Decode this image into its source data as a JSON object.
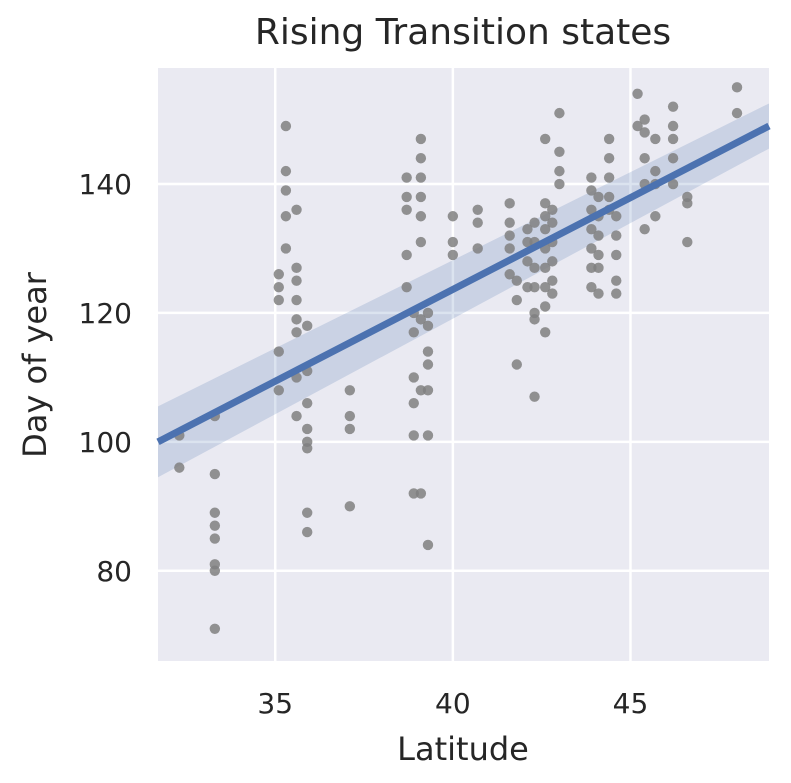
{
  "chart_data": {
    "type": "scatter",
    "title": "Rising Transition states",
    "xlabel": "Latitude",
    "ylabel": "Day of year",
    "xlim": [
      31.7,
      48.9
    ],
    "ylim": [
      66,
      158
    ],
    "xticks": [
      35,
      40,
      45
    ],
    "yticks": [
      80,
      100,
      120,
      140
    ],
    "grid": true,
    "background_color": "#eaeaf2",
    "grid_color": "#ffffff",
    "point_color": "#808080",
    "line_color": "#4c72b0",
    "band_color": "#4c72b0",
    "regression": {
      "x": [
        31.7,
        48.9
      ],
      "y": [
        100.0,
        149.0
      ],
      "ci_lower": [
        94.5,
        145.5
      ],
      "ci_upper": [
        105.5,
        152.5
      ]
    },
    "points": [
      [
        32.3,
        101
      ],
      [
        32.3,
        96
      ],
      [
        33.3,
        104
      ],
      [
        33.3,
        95
      ],
      [
        33.3,
        89
      ],
      [
        33.3,
        87
      ],
      [
        33.3,
        85
      ],
      [
        33.3,
        81
      ],
      [
        33.3,
        80
      ],
      [
        33.3,
        71
      ],
      [
        35.1,
        126
      ],
      [
        35.1,
        124
      ],
      [
        35.1,
        122
      ],
      [
        35.1,
        114
      ],
      [
        35.1,
        108
      ],
      [
        35.3,
        149
      ],
      [
        35.3,
        142
      ],
      [
        35.3,
        139
      ],
      [
        35.3,
        135
      ],
      [
        35.3,
        130
      ],
      [
        35.6,
        136
      ],
      [
        35.6,
        127
      ],
      [
        35.6,
        125
      ],
      [
        35.6,
        122
      ],
      [
        35.6,
        119
      ],
      [
        35.6,
        117
      ],
      [
        35.6,
        110
      ],
      [
        35.6,
        104
      ],
      [
        35.9,
        118
      ],
      [
        35.9,
        111
      ],
      [
        35.9,
        106
      ],
      [
        35.9,
        102
      ],
      [
        35.9,
        100
      ],
      [
        35.9,
        99
      ],
      [
        35.9,
        89
      ],
      [
        35.9,
        86
      ],
      [
        37.1,
        108
      ],
      [
        37.1,
        104
      ],
      [
        37.1,
        102
      ],
      [
        37.1,
        90
      ],
      [
        38.7,
        141
      ],
      [
        38.7,
        138
      ],
      [
        38.7,
        136
      ],
      [
        38.7,
        129
      ],
      [
        38.7,
        124
      ],
      [
        38.9,
        120
      ],
      [
        38.9,
        117
      ],
      [
        38.9,
        110
      ],
      [
        38.9,
        106
      ],
      [
        38.9,
        101
      ],
      [
        38.9,
        92
      ],
      [
        39.1,
        147
      ],
      [
        39.1,
        144
      ],
      [
        39.1,
        141
      ],
      [
        39.1,
        138
      ],
      [
        39.1,
        135
      ],
      [
        39.1,
        131
      ],
      [
        39.1,
        119
      ],
      [
        39.1,
        108
      ],
      [
        39.1,
        92
      ],
      [
        39.3,
        120
      ],
      [
        39.3,
        118
      ],
      [
        39.3,
        114
      ],
      [
        39.3,
        112
      ],
      [
        39.3,
        108
      ],
      [
        39.3,
        101
      ],
      [
        39.3,
        84
      ],
      [
        40.0,
        135
      ],
      [
        40.0,
        131
      ],
      [
        40.0,
        129
      ],
      [
        40.7,
        136
      ],
      [
        40.7,
        134
      ],
      [
        40.7,
        130
      ],
      [
        41.6,
        137
      ],
      [
        41.6,
        134
      ],
      [
        41.6,
        132
      ],
      [
        41.6,
        130
      ],
      [
        41.6,
        126
      ],
      [
        41.8,
        125
      ],
      [
        41.8,
        122
      ],
      [
        41.8,
        112
      ],
      [
        42.1,
        133
      ],
      [
        42.1,
        131
      ],
      [
        42.1,
        128
      ],
      [
        42.1,
        124
      ],
      [
        42.3,
        134
      ],
      [
        42.3,
        131
      ],
      [
        42.3,
        127
      ],
      [
        42.3,
        124
      ],
      [
        42.3,
        120
      ],
      [
        42.3,
        119
      ],
      [
        42.3,
        107
      ],
      [
        42.6,
        147
      ],
      [
        42.6,
        137
      ],
      [
        42.6,
        135
      ],
      [
        42.6,
        133
      ],
      [
        42.6,
        130
      ],
      [
        42.6,
        127
      ],
      [
        42.6,
        124
      ],
      [
        42.6,
        121
      ],
      [
        42.6,
        117
      ],
      [
        42.8,
        136
      ],
      [
        42.8,
        134
      ],
      [
        42.8,
        131
      ],
      [
        42.8,
        128
      ],
      [
        42.8,
        125
      ],
      [
        42.8,
        123
      ],
      [
        43.0,
        151
      ],
      [
        43.0,
        145
      ],
      [
        43.0,
        142
      ],
      [
        43.0,
        140
      ],
      [
        43.9,
        141
      ],
      [
        43.9,
        139
      ],
      [
        43.9,
        136
      ],
      [
        43.9,
        133
      ],
      [
        43.9,
        130
      ],
      [
        43.9,
        127
      ],
      [
        43.9,
        124
      ],
      [
        44.1,
        138
      ],
      [
        44.1,
        135
      ],
      [
        44.1,
        132
      ],
      [
        44.1,
        129
      ],
      [
        44.1,
        127
      ],
      [
        44.1,
        123
      ],
      [
        44.4,
        147
      ],
      [
        44.4,
        144
      ],
      [
        44.4,
        141
      ],
      [
        44.4,
        138
      ],
      [
        44.4,
        136
      ],
      [
        44.6,
        135
      ],
      [
        44.6,
        132
      ],
      [
        44.6,
        129
      ],
      [
        44.6,
        125
      ],
      [
        44.6,
        123
      ],
      [
        45.2,
        154
      ],
      [
        45.2,
        149
      ],
      [
        45.4,
        150
      ],
      [
        45.4,
        148
      ],
      [
        45.4,
        144
      ],
      [
        45.4,
        140
      ],
      [
        45.4,
        133
      ],
      [
        45.7,
        147
      ],
      [
        45.7,
        142
      ],
      [
        45.7,
        140
      ],
      [
        45.7,
        135
      ],
      [
        46.2,
        152
      ],
      [
        46.2,
        149
      ],
      [
        46.2,
        147
      ],
      [
        46.2,
        144
      ],
      [
        46.2,
        140
      ],
      [
        46.6,
        138
      ],
      [
        46.6,
        137
      ],
      [
        46.6,
        131
      ],
      [
        48.0,
        155
      ],
      [
        48.0,
        151
      ]
    ]
  }
}
